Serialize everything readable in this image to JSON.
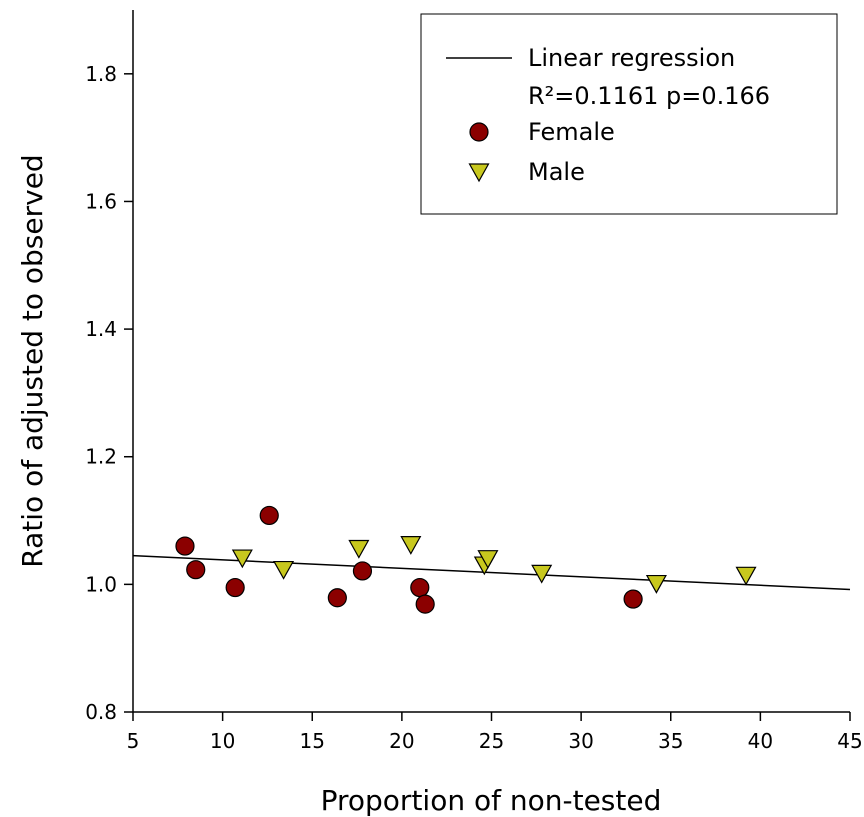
{
  "chart_data": {
    "type": "scatter",
    "title": "",
    "xlabel": "Proportion of non-tested",
    "ylabel": "Ratio of adjusted to observed",
    "xlim": [
      5,
      45
    ],
    "ylim": [
      0.8,
      1.9
    ],
    "x_ticks": [
      5,
      10,
      15,
      20,
      25,
      30,
      35,
      40,
      45
    ],
    "x_tick_labels": [
      "5",
      "10",
      "15",
      "20",
      "25",
      "30",
      "35",
      "40",
      "45"
    ],
    "y_ticks": [
      0.8,
      1.0,
      1.2,
      1.4,
      1.6,
      1.8
    ],
    "y_tick_labels": [
      "0.8",
      "1.0",
      "1.2",
      "1.4",
      "1.6",
      "1.8"
    ],
    "grid": false,
    "legend_position": "top-right",
    "regression": {
      "label": "Linear regression",
      "stats": "R²=0.1161 p=0.166",
      "x": [
        5,
        45
      ],
      "y": [
        1.045,
        0.992
      ],
      "color": "#000000"
    },
    "series": [
      {
        "name": "Female",
        "marker": "circle",
        "color": "#8b0000",
        "points": [
          {
            "x": 7.9,
            "y": 1.06
          },
          {
            "x": 8.5,
            "y": 1.023
          },
          {
            "x": 10.7,
            "y": 0.995
          },
          {
            "x": 12.6,
            "y": 1.108
          },
          {
            "x": 16.4,
            "y": 0.979
          },
          {
            "x": 17.8,
            "y": 1.021
          },
          {
            "x": 21.0,
            "y": 0.995
          },
          {
            "x": 21.3,
            "y": 0.969
          },
          {
            "x": 32.9,
            "y": 0.977
          }
        ]
      },
      {
        "name": "Male",
        "marker": "triangle-down",
        "color": "#c8c81e",
        "points": [
          {
            "x": 11.1,
            "y": 1.042
          },
          {
            "x": 13.4,
            "y": 1.024
          },
          {
            "x": 17.6,
            "y": 1.057
          },
          {
            "x": 20.5,
            "y": 1.063
          },
          {
            "x": 24.6,
            "y": 1.031
          },
          {
            "x": 24.8,
            "y": 1.041
          },
          {
            "x": 27.8,
            "y": 1.018
          },
          {
            "x": 34.2,
            "y": 1.002
          },
          {
            "x": 39.2,
            "y": 1.015
          }
        ]
      }
    ]
  }
}
